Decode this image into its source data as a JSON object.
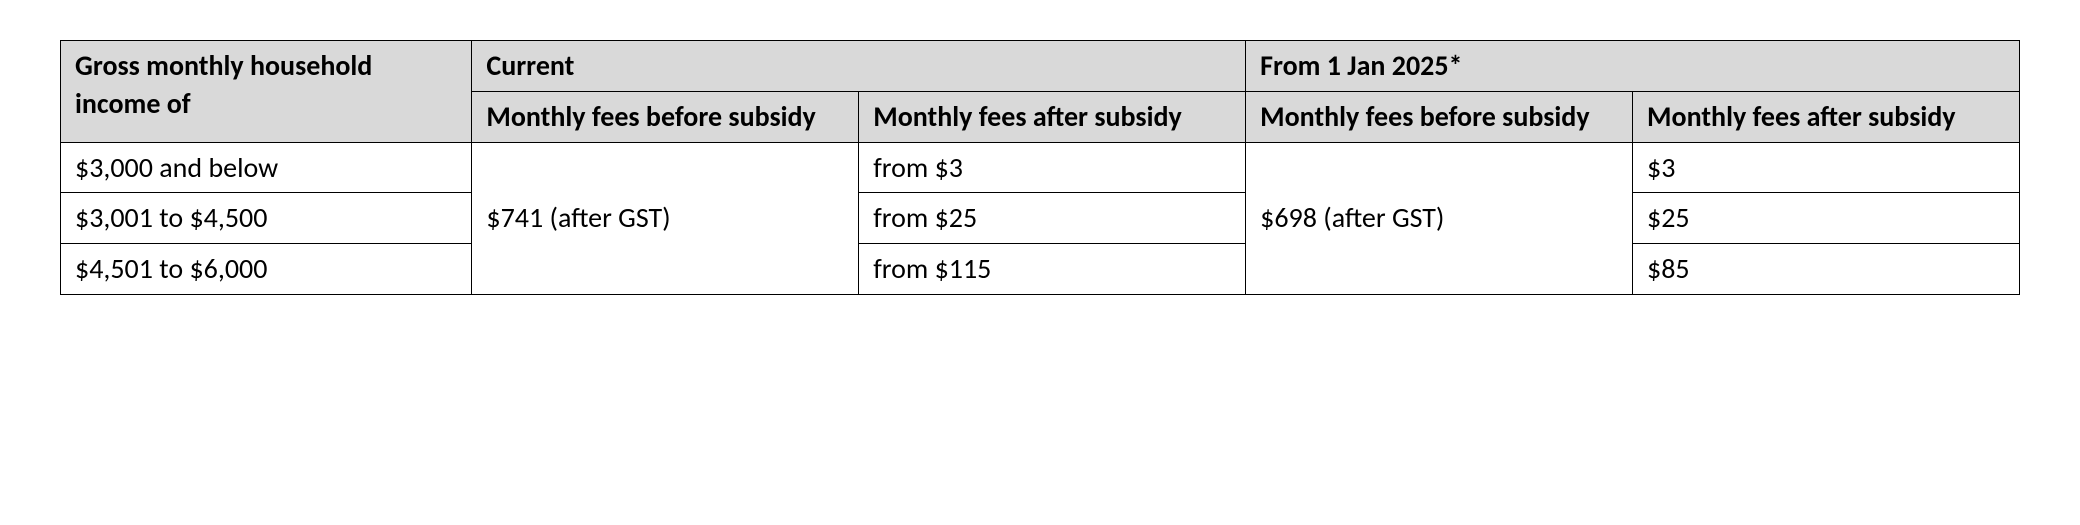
{
  "table": {
    "type": "table",
    "border_color": "#000000",
    "header_background": "#d9d9d9",
    "body_background": "#ffffff",
    "text_color": "#000000",
    "font_family": "Calibri",
    "font_size_pt": 21,
    "header_font_weight": "bold",
    "column_widths_pct": [
      21,
      19.75,
      19.75,
      19.75,
      19.75
    ],
    "headers": {
      "income": "Gross monthly household income of",
      "current": "Current",
      "future": "From 1 Jan 2025*",
      "before_subsidy": "Monthly fees before subsidy",
      "after_subsidy": "Monthly fees after subsidy"
    },
    "rows": [
      {
        "income": "$3,000 and below",
        "current_before": "$741 (after GST)",
        "current_after": "from $3",
        "future_before": "$698 (after GST)",
        "future_after": "$3"
      },
      {
        "income": "$3,001 to $4,500",
        "current_after": "from $25",
        "future_after": "$25"
      },
      {
        "income": "$4,501 to $6,000",
        "current_after": "from $115",
        "future_after": "$85"
      }
    ]
  }
}
